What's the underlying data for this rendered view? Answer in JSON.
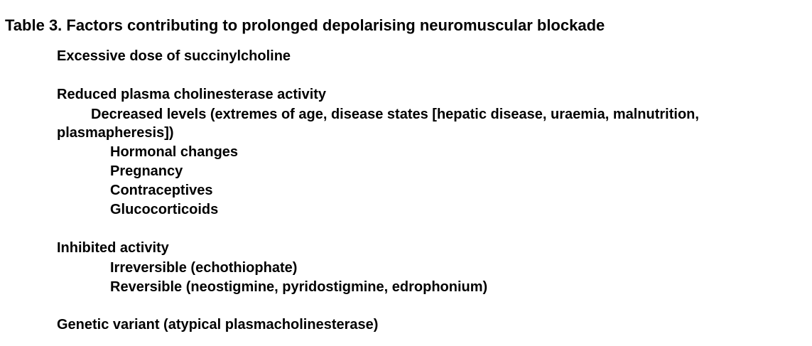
{
  "title": "Table 3. Factors contributing to prolonged depolarising neuromuscular blockade",
  "items": {
    "excessive_dose": "Excessive dose of succinylcholine",
    "reduced_activity": "Reduced plasma cholinesterase activity",
    "decreased_levels_line1": "Decreased levels (extremes of age, disease states [hepatic disease, uraemia, malnutrition,",
    "decreased_levels_line2": "plasmapheresis])",
    "hormonal_changes": "Hormonal changes",
    "pregnancy": "Pregnancy",
    "contraceptives": "Contraceptives",
    "glucocorticoids": "Glucocorticoids",
    "inhibited_activity": "Inhibited activity",
    "irreversible": "Irreversible (echothiophate)",
    "reversible": "Reversible (neostigmine, pyridostigmine, edrophonium)",
    "genetic_variant": "Genetic variant (atypical plasmacholinesterase)"
  }
}
